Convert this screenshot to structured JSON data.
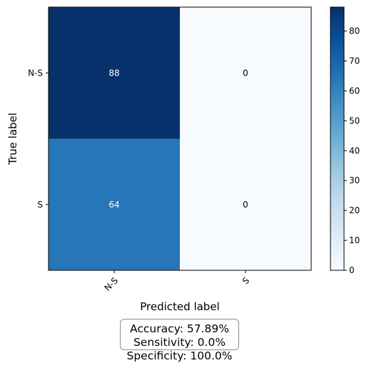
{
  "chart_data": {
    "type": "heatmap",
    "title": "",
    "xlabel": "Predicted label",
    "ylabel": "True label",
    "x_categories": [
      "N-S",
      "S"
    ],
    "y_categories": [
      "N-S",
      "S"
    ],
    "values": [
      [
        88,
        0
      ],
      [
        64,
        0
      ]
    ],
    "cell_labels": [
      [
        "88",
        "0"
      ],
      [
        "64",
        "0"
      ]
    ],
    "colormap": "Blues",
    "vmin": 0,
    "vmax": 88,
    "colorbar_ticks": [
      0,
      10,
      20,
      30,
      40,
      50,
      60,
      70,
      80
    ],
    "colorbar_tick_labels": [
      "0",
      "10",
      "20",
      "30",
      "40",
      "50",
      "60",
      "70",
      "80"
    ],
    "text_colors": {
      "dark": "#ffffff",
      "light": "#000000"
    },
    "x_tick_rotation": "45°"
  },
  "metrics": {
    "accuracy": "Accuracy: 57.89%",
    "sensitivity": "Sensitivity: 0.0%",
    "specificity": "Specificity: 100.0%"
  }
}
